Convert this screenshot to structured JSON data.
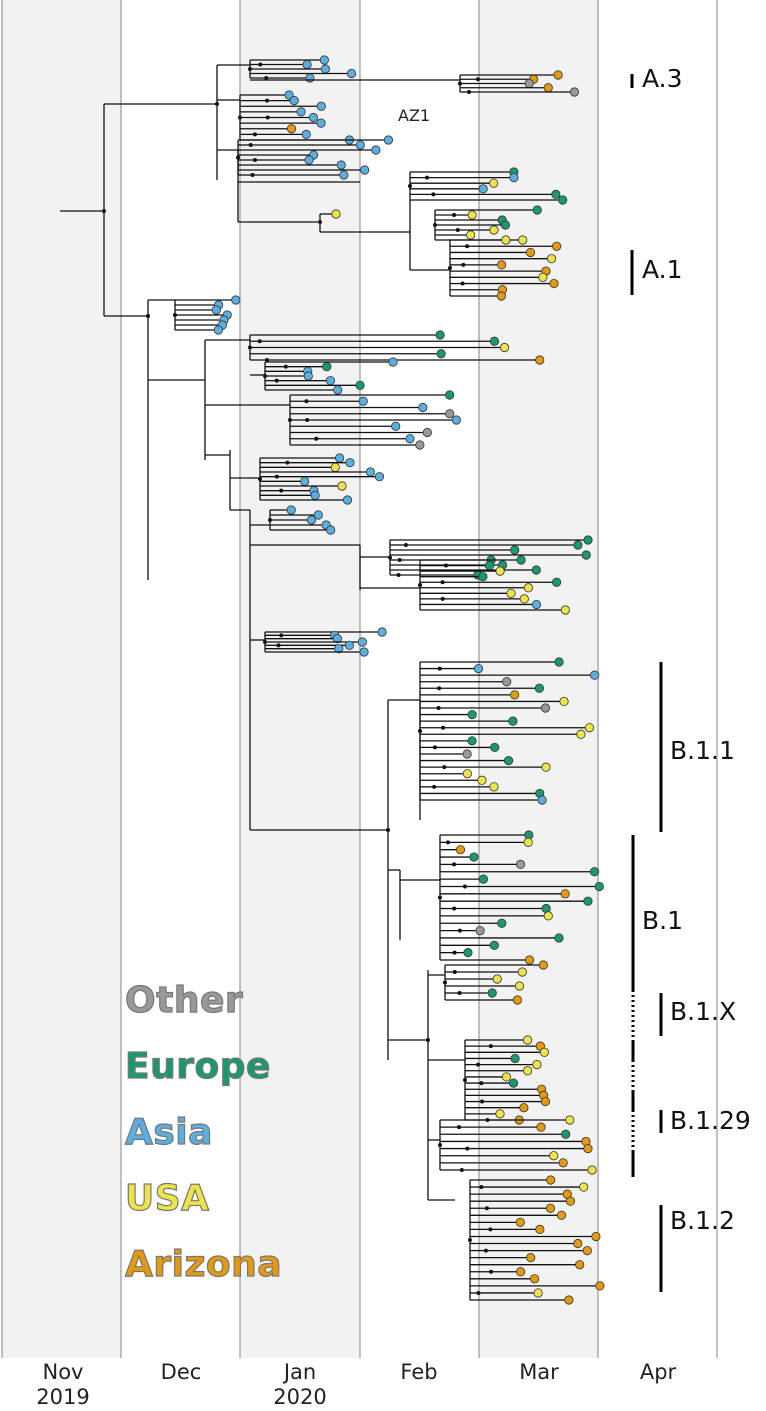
{
  "months": [
    {
      "label": "Nov",
      "year": "2019"
    },
    {
      "label": "Dec",
      "year": ""
    },
    {
      "label": "Jan",
      "year": "2020"
    },
    {
      "label": "Feb",
      "year": ""
    },
    {
      "label": "Mar",
      "year": ""
    },
    {
      "label": "Apr",
      "year": ""
    }
  ],
  "annotation": "AZ1",
  "clades": [
    {
      "label": "A.3"
    },
    {
      "label": "A.1"
    },
    {
      "label": "B.1.1"
    },
    {
      "label": "B.1"
    },
    {
      "label": "B.1.X"
    },
    {
      "label": "B.1.29"
    },
    {
      "label": "B.1.2"
    }
  ],
  "legend": [
    {
      "label": "Other",
      "color": "#999999"
    },
    {
      "label": "Europe",
      "color": "#1a9971"
    },
    {
      "label": "Asia",
      "color": "#5aaee0"
    },
    {
      "label": "USA",
      "color": "#ede44a"
    },
    {
      "label": "Arizona",
      "color": "#e39a10"
    }
  ],
  "colors": {
    "band": "#f2f2f2",
    "gridline": "#999999",
    "branch": "#111111",
    "bar": "#000000"
  }
}
